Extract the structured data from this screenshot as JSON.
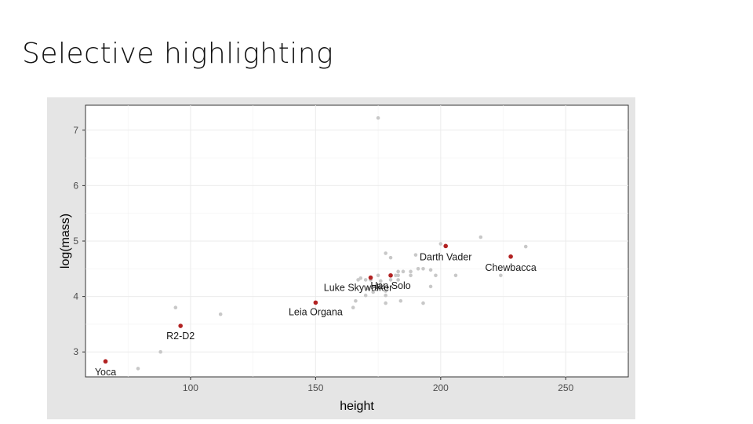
{
  "slide": {
    "title": "Selective highlighting"
  },
  "chart_data": {
    "type": "scatter",
    "title": "",
    "xlabel": "height",
    "ylabel": "log(mass)",
    "xlim": [
      58,
      275
    ],
    "ylim": [
      2.55,
      7.45
    ],
    "x_ticks": [
      100,
      150,
      200,
      250
    ],
    "y_ticks": [
      3,
      4,
      5,
      6,
      7
    ],
    "grid": true,
    "legend": "none",
    "colors": {
      "background": "#e5e5e5",
      "gray_point": "#c8c8c8",
      "highlight": "#b22222",
      "panel_border": "#333333"
    },
    "series": [
      {
        "name": "",
        "role": "background",
        "x": [
          175,
          79,
          88,
          94,
          96,
          112,
          165,
          166,
          167,
          168,
          170,
          170,
          171,
          172,
          173,
          175,
          175,
          176,
          178,
          178,
          178,
          178,
          180,
          180,
          182,
          183,
          183,
          183,
          184,
          185,
          188,
          188,
          190,
          191,
          193,
          193,
          196,
          196,
          198,
          200,
          206,
          216,
          224,
          234
        ],
        "y": [
          7.22,
          2.7,
          3.0,
          3.8,
          3.47,
          3.68,
          3.8,
          3.92,
          4.3,
          4.33,
          4.02,
          4.3,
          4.15,
          4.3,
          4.08,
          4.15,
          4.38,
          4.28,
          3.88,
          4.02,
          4.1,
          4.78,
          4.7,
          4.3,
          4.38,
          4.45,
          4.38,
          4.3,
          3.92,
          4.45,
          4.45,
          4.38,
          4.75,
          4.5,
          4.5,
          3.88,
          4.18,
          4.48,
          4.38,
          4.95,
          4.38,
          5.07,
          4.38,
          4.9
        ]
      },
      {
        "name": "",
        "role": "highlighted",
        "labels": [
          "Yoca",
          "R2-D2",
          "Leia Organa",
          "Luke Skywalker",
          "Han Solo",
          "Darth Vader",
          "Chewbacca"
        ],
        "x": [
          66,
          96,
          150,
          172,
          180,
          202,
          228
        ],
        "y": [
          2.83,
          3.47,
          3.89,
          4.34,
          4.38,
          4.91,
          4.72
        ]
      }
    ]
  }
}
